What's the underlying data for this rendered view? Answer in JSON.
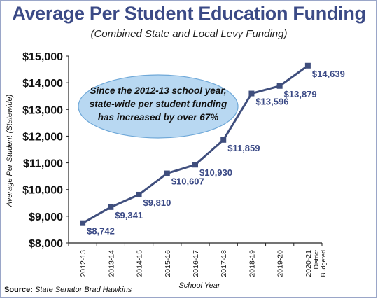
{
  "title": "Average Per Student Education Funding",
  "subtitle": "(Combined State and Local Levy Funding)",
  "source_label": "Source:",
  "source_text": "State Senator Brad Hawkins",
  "annotation": {
    "line1": "Since the 2012-13 school year,",
    "line2": "state-wide per student funding",
    "line3": "has increased by over 67%"
  },
  "colors": {
    "line": "#3f4e7d",
    "title": "#3b4a86",
    "label": "#3b4a86",
    "bubble": "#b8d8f2",
    "bubble_stroke": "#6fa8d8"
  },
  "chart_data": {
    "type": "line",
    "categories": [
      "2012-13",
      "2013-14",
      "2014-15",
      "2015-16",
      "2016-17",
      "2017-18",
      "2018-19",
      "2019-20",
      "2020-21"
    ],
    "category_sublabels": [
      "",
      "",
      "",
      "",
      "",
      "",
      "",
      "",
      "District Budgeted"
    ],
    "series": [
      {
        "values": [
          8742,
          9341,
          9810,
          10607,
          10930,
          11859,
          13596,
          13879,
          14639
        ],
        "labels": [
          "$8,742",
          "$9,341",
          "$9,810",
          "$10,607",
          "$10,930",
          "$11,859",
          "$13,596",
          "$13,879",
          "$14,639"
        ]
      }
    ],
    "xlabel": "School Year",
    "ylabel": "Average Per Student (Statewide)",
    "ylim": [
      8000,
      15000
    ],
    "yticks": [
      8000,
      9000,
      10000,
      11000,
      12000,
      13000,
      14000,
      15000
    ],
    "ytick_labels": [
      "$8,000",
      "$9,000",
      "$10,000",
      "$11,000",
      "$12,000",
      "$13,000",
      "$14,000",
      "$15,000"
    ],
    "grid": false,
    "legend": "none"
  }
}
